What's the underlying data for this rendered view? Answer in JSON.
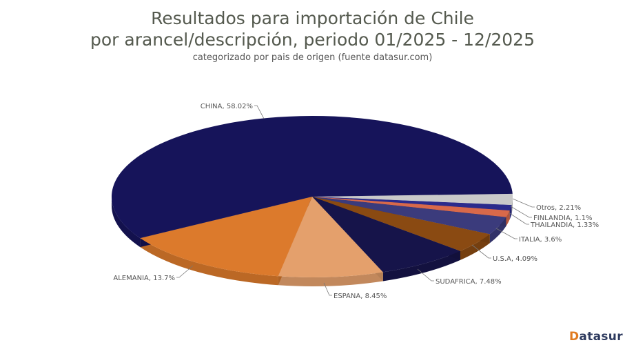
{
  "header": {
    "title_line1": "Resultados para importación de Chile",
    "title_line2": "por arancel/descripción, periodo 01/2025 - 12/2025",
    "subtitle": "categorizado por pais de origen (fuente datasur.com)"
  },
  "logo": {
    "first_letter": "D",
    "rest": "atasur"
  },
  "chart_data": {
    "type": "pie",
    "style": "3d",
    "title": "Resultados para importación de Chile por arancel/descripción, periodo 01/2025 - 12/2025",
    "subtitle": "categorizado por pais de origen (fuente datasur.com)",
    "categories": [
      "Otros",
      "FINLANDIA",
      "THAILANDIA",
      "ITALIA",
      "U.S.A",
      "SUDAFRICA",
      "ESPANA",
      "ALEMANIA",
      "CHINA"
    ],
    "values": [
      2.21,
      1.1,
      1.33,
      3.6,
      4.09,
      7.48,
      8.45,
      13.7,
      58.02
    ],
    "labels": [
      "Otros, 2.21%",
      "FINLANDIA, 1.1%",
      "THAILANDIA, 1.33%",
      "ITALIA, 3.6%",
      "U.S.A, 4.09%",
      "SUDAFRICA, 7.48%",
      "ESPANA, 8.45%",
      "ALEMANIA, 13.7%",
      "CHINA, 58.02%"
    ],
    "colors": [
      "#c9c9c9",
      "#2b2b8c",
      "#d8694a",
      "#3b3b7c",
      "#8a4a12",
      "#16144a",
      "#e4a06c",
      "#dc7a2c",
      "#16145a"
    ],
    "unit": "%",
    "legend": "none (data labels with leader lines)"
  }
}
